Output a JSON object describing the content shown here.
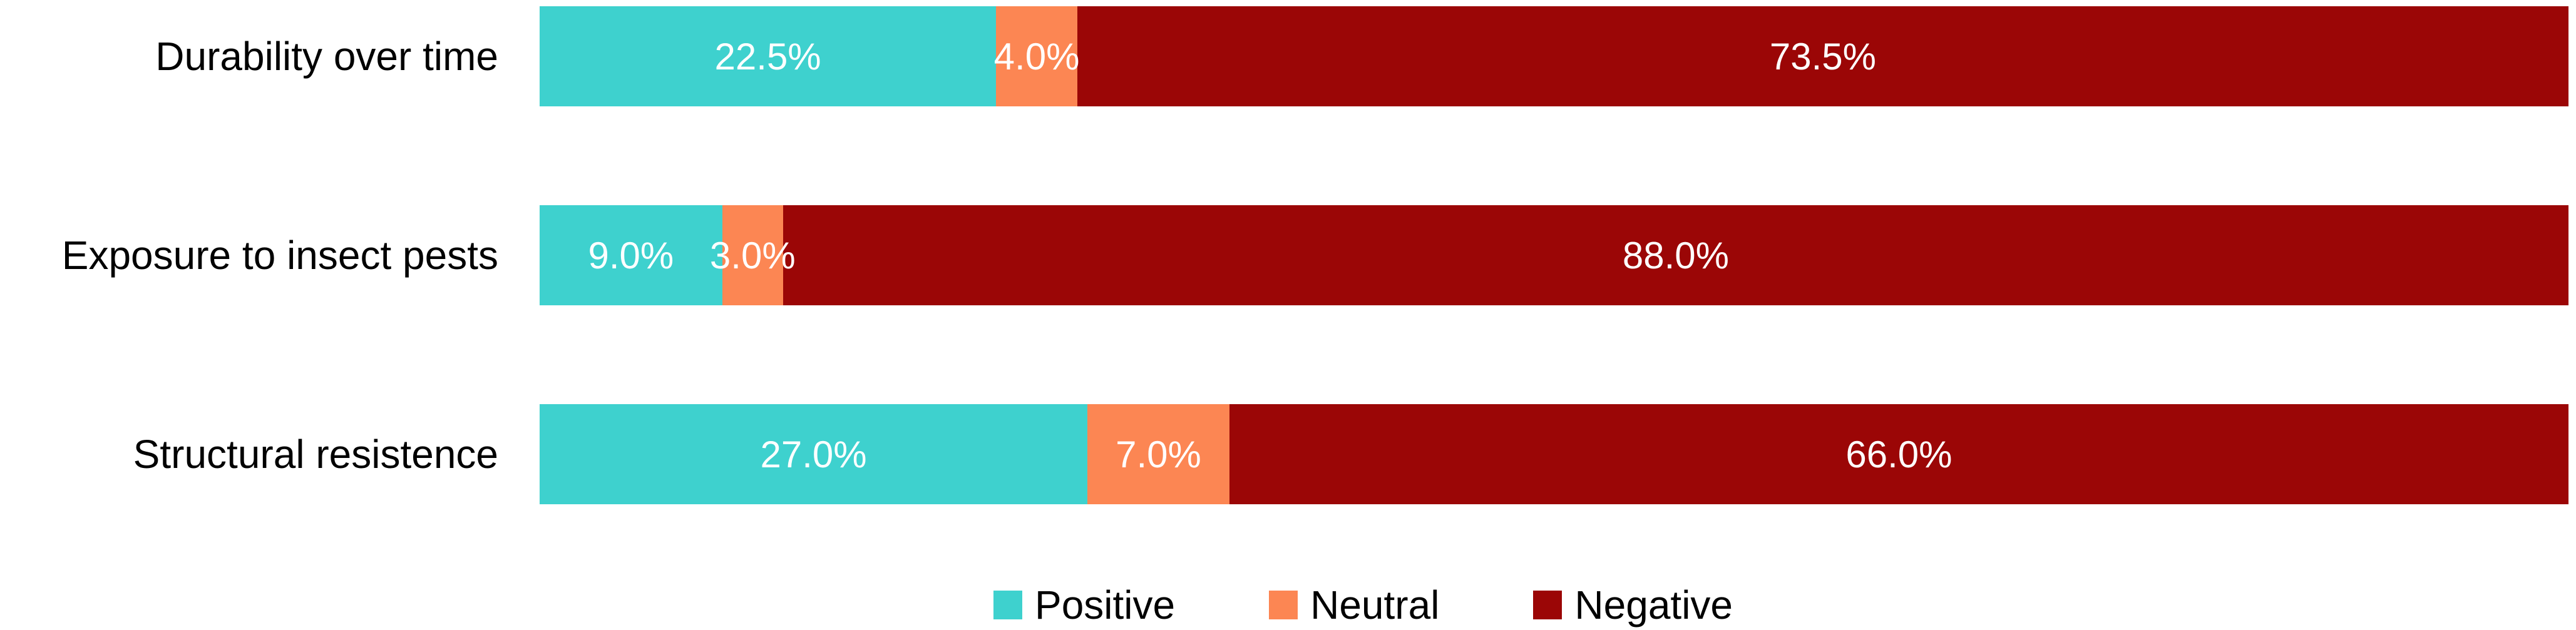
{
  "chart_data": {
    "type": "bar",
    "orientation": "horizontal",
    "stacked": true,
    "unit": "%",
    "xlim": [
      0,
      100
    ],
    "axes_visible": false,
    "grid": false,
    "legend_position": "bottom-center",
    "background_color": "#FFFFFF",
    "category_label_color": "#000000",
    "value_label_color": "#FFFFFF",
    "categories": [
      "Durability over time",
      "Exposure to insect pests",
      "Structural resistence"
    ],
    "series": [
      {
        "name": "Positive",
        "color": "#3ED1CE",
        "values": [
          22.5,
          9.0,
          27.0
        ],
        "labels": [
          "22.5%",
          "9.0%",
          "27.0%"
        ]
      },
      {
        "name": "Neutral",
        "color": "#FC8653",
        "values": [
          4.0,
          3.0,
          7.0
        ],
        "labels": [
          "4.0%",
          "3.0%",
          "7.0%"
        ]
      },
      {
        "name": "Negative",
        "color": "#9B0606",
        "values": [
          73.5,
          88.0,
          66.0
        ],
        "labels": [
          "73.5%",
          "88.0%",
          "66.0%"
        ]
      }
    ]
  }
}
